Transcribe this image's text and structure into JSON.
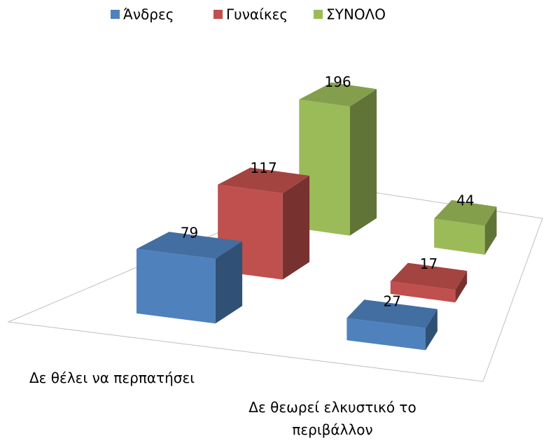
{
  "chart_data": {
    "type": "bar3d",
    "categories": [
      "Δε θέλει να περπατήσει",
      "Δε θεωρεί ελκυστικό το περιβάλλον"
    ],
    "series": [
      {
        "name": "Άνδρες",
        "color": "#4f81bd",
        "values": [
          79,
          27
        ]
      },
      {
        "name": "Γυναίκες",
        "color": "#c0504d",
        "values": [
          117,
          17
        ]
      },
      {
        "name": "ΣΥΝΟΛΟ",
        "color": "#9bbb59",
        "values": [
          196,
          44
        ]
      }
    ],
    "legend": "top"
  }
}
